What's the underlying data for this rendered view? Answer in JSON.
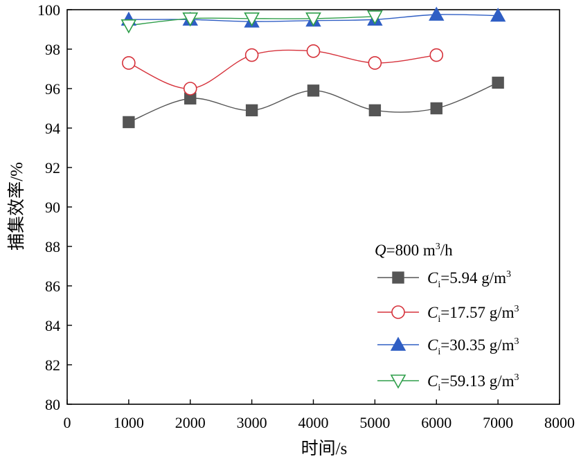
{
  "chart_data": {
    "type": "line",
    "title": "",
    "xlabel": "时间/s",
    "ylabel": "捕集效率/%",
    "xlim": [
      0,
      8000
    ],
    "ylim": [
      80,
      100
    ],
    "xticks": [
      0,
      1000,
      2000,
      3000,
      4000,
      5000,
      6000,
      7000,
      8000
    ],
    "yticks": [
      80,
      82,
      84,
      86,
      88,
      90,
      92,
      94,
      96,
      98,
      100
    ],
    "legend_title": {
      "italic": "Q",
      "rest": "=800 m",
      "sup": "3",
      "tail": "/h"
    },
    "series": [
      {
        "name": "Ci=5.94 g/m3",
        "label_italic": "C",
        "label_sub": "i",
        "label_rest": "=5.94 g/m",
        "label_sup": "3",
        "color": "#555555",
        "marker": "square",
        "marker_fill": "#555555",
        "x": [
          1000,
          2000,
          3000,
          4000,
          5000,
          6000,
          7000
        ],
        "y": [
          94.3,
          95.5,
          94.9,
          95.9,
          94.9,
          95.0,
          96.3
        ]
      },
      {
        "name": "Ci=17.57 g/m3",
        "label_italic": "C",
        "label_sub": "i",
        "label_rest": "=17.57 g/m",
        "label_sup": "3",
        "color": "#d6323b",
        "marker": "circle",
        "marker_fill": "#ffffff",
        "x": [
          1000,
          2000,
          3000,
          4000,
          5000,
          6000
        ],
        "y": [
          97.3,
          96.0,
          97.7,
          97.9,
          97.3,
          97.7
        ]
      },
      {
        "name": "Ci=30.35 g/m3",
        "label_italic": "C",
        "label_sub": "i",
        "label_rest": "=30.35 g/m",
        "label_sup": "3",
        "color": "#2f5ec4",
        "marker": "triangle-up",
        "marker_fill": "#2f5ec4",
        "x": [
          1000,
          2000,
          3000,
          4000,
          5000,
          6000,
          7000
        ],
        "y": [
          99.5,
          99.5,
          99.4,
          99.45,
          99.5,
          99.75,
          99.7
        ]
      },
      {
        "name": "Ci=59.13 g/m3",
        "label_italic": "C",
        "label_sub": "i",
        "label_rest": "=59.13 g/m",
        "label_sup": "3",
        "color": "#2e9e4a",
        "marker": "triangle-down",
        "marker_fill": "#ffffff",
        "x": [
          1000,
          2000,
          3000,
          4000,
          5000
        ],
        "y": [
          99.2,
          99.55,
          99.55,
          99.55,
          99.65
        ]
      }
    ],
    "grid": false,
    "legend_position": "bottom-right"
  }
}
